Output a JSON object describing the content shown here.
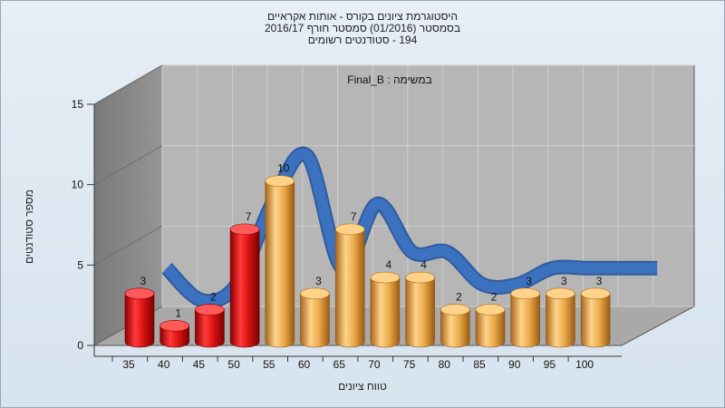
{
  "chart_data": {
    "type": "bar",
    "title_lines": [
      "היסטוגרמת ציונים בקורס - אותות אקראיים",
      "בסמסטר  (01/2016)  סמסטר חורף 2016/17",
      "194 - סטודנטים רשומים"
    ],
    "subtitle": "Final_B : במשימה",
    "xlabel": "טווח ציונים",
    "ylabel": "מספר סטודנטים",
    "categories": [
      "35",
      "40",
      "45",
      "50",
      "55",
      "60",
      "65",
      "70",
      "75",
      "80",
      "85",
      "90",
      "95",
      "100"
    ],
    "values": [
      3,
      1,
      2,
      7,
      10,
      3,
      7,
      4,
      4,
      2,
      2,
      3,
      3,
      3
    ],
    "ylim": [
      0,
      15
    ],
    "yticks": [
      0,
      5,
      10,
      15
    ],
    "grid": true,
    "bar_colors": [
      "#e01a1a",
      "#e01a1a",
      "#e01a1a",
      "#e01a1a",
      "#e2a445",
      "#e2a445",
      "#e2a445",
      "#e2a445",
      "#e2a445",
      "#e2a445",
      "#e2a445",
      "#e2a445",
      "#e2a445",
      "#e2a445"
    ],
    "trend_color": "#3a72c0",
    "wall_color": "#b6b6b6",
    "floor_color": "#a9a9a9"
  }
}
